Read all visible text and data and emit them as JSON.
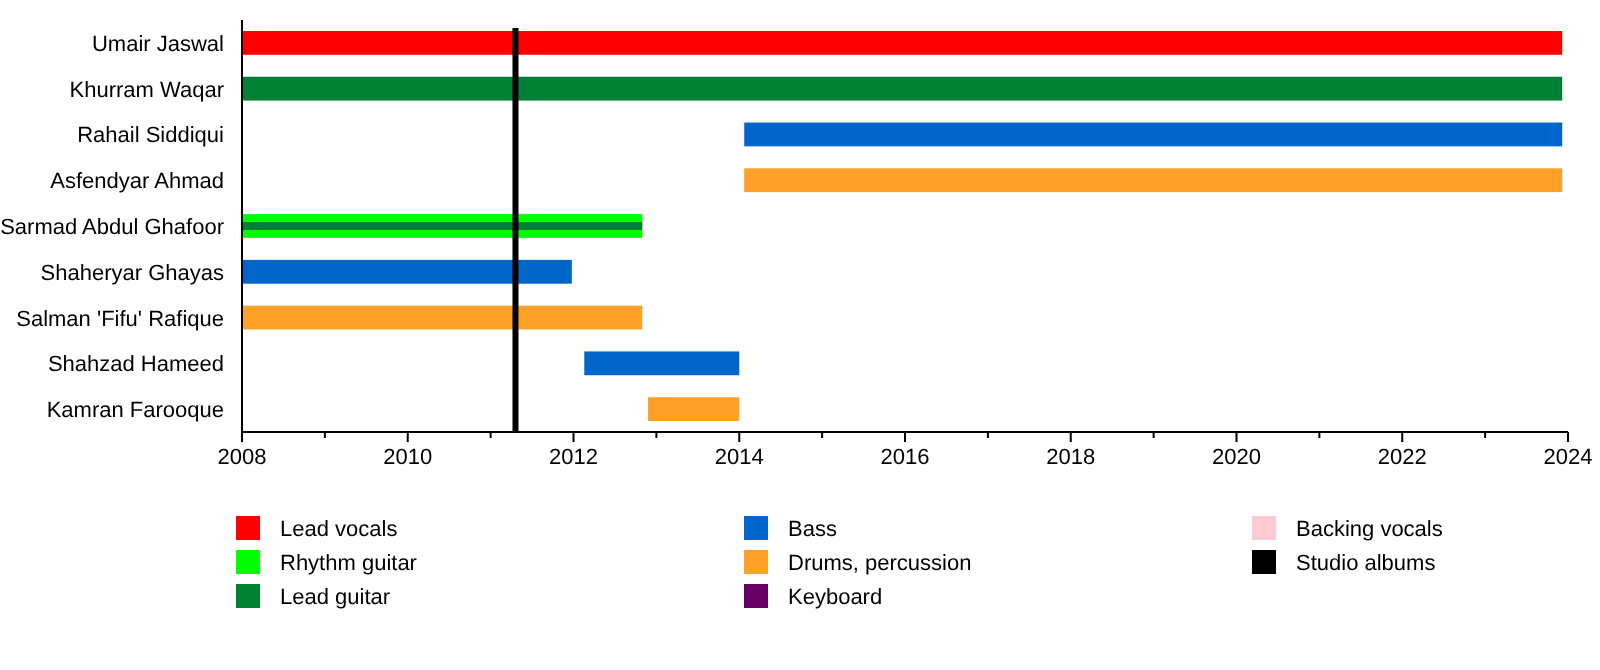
{
  "chart_data": {
    "type": "bar",
    "orientation": "horizontal",
    "stacked": false,
    "categories": [
      "Umair Jaswal",
      "Khurram Waqar",
      "Rahail Siddiqui",
      "Asfendyar Ahmad",
      "Sarmad Abdul Ghafoor",
      "Shaheryar Ghayas",
      "Salman 'Fifu' Rafique",
      "Shahzad Hameed",
      "Kamran Farooque"
    ],
    "series": [
      {
        "name": "Lead vocals",
        "color": "#ff0000",
        "base": [
          2008,
          null,
          null,
          null,
          null,
          null,
          null,
          null,
          null
        ],
        "values": [
          15.93,
          null,
          null,
          null,
          null,
          null,
          null,
          null,
          null
        ]
      },
      {
        "name": "Rhythm guitar",
        "color": "#00ff00",
        "base": [
          null,
          null,
          null,
          null,
          2008,
          null,
          null,
          null,
          null
        ],
        "values": [
          null,
          null,
          null,
          null,
          4.83,
          null,
          null,
          null,
          null
        ]
      },
      {
        "name": "Lead guitar",
        "color": "#008033",
        "base": [
          null,
          2008,
          null,
          null,
          2008,
          null,
          null,
          null,
          null
        ],
        "values": [
          null,
          15.93,
          null,
          null,
          4.83,
          null,
          null,
          null,
          null
        ]
      },
      {
        "name": "Bass",
        "color": "#0066cc",
        "base": [
          null,
          null,
          2014.06,
          null,
          null,
          2008,
          null,
          2012.13,
          null
        ],
        "values": [
          null,
          null,
          9.87,
          null,
          null,
          3.98,
          null,
          1.87,
          null
        ]
      },
      {
        "name": "Drums, percussion",
        "color": "#ffa028",
        "base": [
          null,
          null,
          null,
          2014.06,
          null,
          null,
          2008,
          null,
          2012.9
        ],
        "values": [
          null,
          null,
          null,
          9.87,
          null,
          null,
          4.83,
          null,
          1.1
        ]
      },
      {
        "name": "Keyboard",
        "color": "#660066",
        "base": [
          null,
          null,
          null,
          null,
          null,
          null,
          null,
          null,
          null
        ],
        "values": [
          null,
          null,
          null,
          null,
          null,
          null,
          null,
          null,
          null
        ]
      },
      {
        "name": "Backing vocals",
        "color": "#ffcad4",
        "base": [
          null,
          null,
          null,
          null,
          null,
          null,
          null,
          null,
          null
        ],
        "values": [
          null,
          null,
          null,
          null,
          null,
          null,
          null,
          null,
          null
        ]
      }
    ],
    "ref_lines": [
      {
        "axis": "x",
        "value": 2011.3,
        "label": "Studio albums",
        "color": "#000000"
      }
    ],
    "xlim": [
      2008,
      2024
    ],
    "xticks": [
      2008,
      {
        "value": 2009,
        "label": null
      },
      2010,
      {
        "value": 2011,
        "label": null
      },
      2012,
      {
        "value": 2013,
        "label": null
      },
      2014,
      {
        "value": 2015,
        "label": null
      },
      2016,
      {
        "value": 2017,
        "label": null
      },
      2018,
      {
        "value": 2019,
        "label": null
      },
      2020,
      {
        "value": 2021,
        "label": null
      },
      2022,
      {
        "value": 2023,
        "label": null
      },
      2024
    ],
    "grid": false,
    "legend": "bottom"
  }
}
